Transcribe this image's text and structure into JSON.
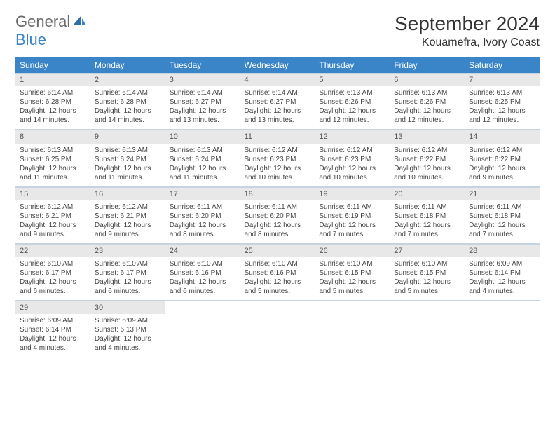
{
  "brand": {
    "general": "General",
    "blue": "Blue"
  },
  "header": {
    "title": "September 2024",
    "location": "Kouamefra, Ivory Coast"
  },
  "colors": {
    "accent": "#3a85c7",
    "header_bg": "#3a85c7",
    "header_text": "#ffffff",
    "daynum_bg": "#e8e8e8",
    "border": "#c5d4e0",
    "text": "#333333",
    "logo_gray": "#6b6b6b"
  },
  "weekdays": [
    "Sunday",
    "Monday",
    "Tuesday",
    "Wednesday",
    "Thursday",
    "Friday",
    "Saturday"
  ],
  "weeks": [
    [
      {
        "n": "1",
        "sr": "Sunrise: 6:14 AM",
        "ss": "Sunset: 6:28 PM",
        "d1": "Daylight: 12 hours",
        "d2": "and 14 minutes."
      },
      {
        "n": "2",
        "sr": "Sunrise: 6:14 AM",
        "ss": "Sunset: 6:28 PM",
        "d1": "Daylight: 12 hours",
        "d2": "and 14 minutes."
      },
      {
        "n": "3",
        "sr": "Sunrise: 6:14 AM",
        "ss": "Sunset: 6:27 PM",
        "d1": "Daylight: 12 hours",
        "d2": "and 13 minutes."
      },
      {
        "n": "4",
        "sr": "Sunrise: 6:14 AM",
        "ss": "Sunset: 6:27 PM",
        "d1": "Daylight: 12 hours",
        "d2": "and 13 minutes."
      },
      {
        "n": "5",
        "sr": "Sunrise: 6:13 AM",
        "ss": "Sunset: 6:26 PM",
        "d1": "Daylight: 12 hours",
        "d2": "and 12 minutes."
      },
      {
        "n": "6",
        "sr": "Sunrise: 6:13 AM",
        "ss": "Sunset: 6:26 PM",
        "d1": "Daylight: 12 hours",
        "d2": "and 12 minutes."
      },
      {
        "n": "7",
        "sr": "Sunrise: 6:13 AM",
        "ss": "Sunset: 6:25 PM",
        "d1": "Daylight: 12 hours",
        "d2": "and 12 minutes."
      }
    ],
    [
      {
        "n": "8",
        "sr": "Sunrise: 6:13 AM",
        "ss": "Sunset: 6:25 PM",
        "d1": "Daylight: 12 hours",
        "d2": "and 11 minutes."
      },
      {
        "n": "9",
        "sr": "Sunrise: 6:13 AM",
        "ss": "Sunset: 6:24 PM",
        "d1": "Daylight: 12 hours",
        "d2": "and 11 minutes."
      },
      {
        "n": "10",
        "sr": "Sunrise: 6:13 AM",
        "ss": "Sunset: 6:24 PM",
        "d1": "Daylight: 12 hours",
        "d2": "and 11 minutes."
      },
      {
        "n": "11",
        "sr": "Sunrise: 6:12 AM",
        "ss": "Sunset: 6:23 PM",
        "d1": "Daylight: 12 hours",
        "d2": "and 10 minutes."
      },
      {
        "n": "12",
        "sr": "Sunrise: 6:12 AM",
        "ss": "Sunset: 6:23 PM",
        "d1": "Daylight: 12 hours",
        "d2": "and 10 minutes."
      },
      {
        "n": "13",
        "sr": "Sunrise: 6:12 AM",
        "ss": "Sunset: 6:22 PM",
        "d1": "Daylight: 12 hours",
        "d2": "and 10 minutes."
      },
      {
        "n": "14",
        "sr": "Sunrise: 6:12 AM",
        "ss": "Sunset: 6:22 PM",
        "d1": "Daylight: 12 hours",
        "d2": "and 9 minutes."
      }
    ],
    [
      {
        "n": "15",
        "sr": "Sunrise: 6:12 AM",
        "ss": "Sunset: 6:21 PM",
        "d1": "Daylight: 12 hours",
        "d2": "and 9 minutes."
      },
      {
        "n": "16",
        "sr": "Sunrise: 6:12 AM",
        "ss": "Sunset: 6:21 PM",
        "d1": "Daylight: 12 hours",
        "d2": "and 9 minutes."
      },
      {
        "n": "17",
        "sr": "Sunrise: 6:11 AM",
        "ss": "Sunset: 6:20 PM",
        "d1": "Daylight: 12 hours",
        "d2": "and 8 minutes."
      },
      {
        "n": "18",
        "sr": "Sunrise: 6:11 AM",
        "ss": "Sunset: 6:20 PM",
        "d1": "Daylight: 12 hours",
        "d2": "and 8 minutes."
      },
      {
        "n": "19",
        "sr": "Sunrise: 6:11 AM",
        "ss": "Sunset: 6:19 PM",
        "d1": "Daylight: 12 hours",
        "d2": "and 7 minutes."
      },
      {
        "n": "20",
        "sr": "Sunrise: 6:11 AM",
        "ss": "Sunset: 6:18 PM",
        "d1": "Daylight: 12 hours",
        "d2": "and 7 minutes."
      },
      {
        "n": "21",
        "sr": "Sunrise: 6:11 AM",
        "ss": "Sunset: 6:18 PM",
        "d1": "Daylight: 12 hours",
        "d2": "and 7 minutes."
      }
    ],
    [
      {
        "n": "22",
        "sr": "Sunrise: 6:10 AM",
        "ss": "Sunset: 6:17 PM",
        "d1": "Daylight: 12 hours",
        "d2": "and 6 minutes."
      },
      {
        "n": "23",
        "sr": "Sunrise: 6:10 AM",
        "ss": "Sunset: 6:17 PM",
        "d1": "Daylight: 12 hours",
        "d2": "and 6 minutes."
      },
      {
        "n": "24",
        "sr": "Sunrise: 6:10 AM",
        "ss": "Sunset: 6:16 PM",
        "d1": "Daylight: 12 hours",
        "d2": "and 6 minutes."
      },
      {
        "n": "25",
        "sr": "Sunrise: 6:10 AM",
        "ss": "Sunset: 6:16 PM",
        "d1": "Daylight: 12 hours",
        "d2": "and 5 minutes."
      },
      {
        "n": "26",
        "sr": "Sunrise: 6:10 AM",
        "ss": "Sunset: 6:15 PM",
        "d1": "Daylight: 12 hours",
        "d2": "and 5 minutes."
      },
      {
        "n": "27",
        "sr": "Sunrise: 6:10 AM",
        "ss": "Sunset: 6:15 PM",
        "d1": "Daylight: 12 hours",
        "d2": "and 5 minutes."
      },
      {
        "n": "28",
        "sr": "Sunrise: 6:09 AM",
        "ss": "Sunset: 6:14 PM",
        "d1": "Daylight: 12 hours",
        "d2": "and 4 minutes."
      }
    ],
    [
      {
        "n": "29",
        "sr": "Sunrise: 6:09 AM",
        "ss": "Sunset: 6:14 PM",
        "d1": "Daylight: 12 hours",
        "d2": "and 4 minutes."
      },
      {
        "n": "30",
        "sr": "Sunrise: 6:09 AM",
        "ss": "Sunset: 6:13 PM",
        "d1": "Daylight: 12 hours",
        "d2": "and 4 minutes."
      },
      null,
      null,
      null,
      null,
      null
    ]
  ]
}
